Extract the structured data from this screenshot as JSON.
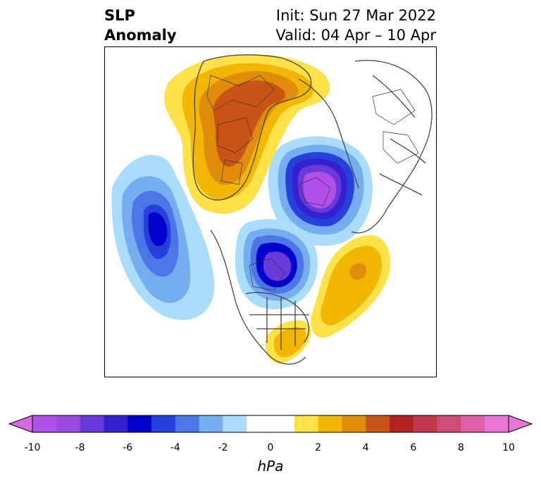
{
  "title": {
    "left_line1": "SLP",
    "left_line2": "Anomaly",
    "right_line1": "Init: Sun 27 Mar 2022",
    "right_line2": "Valid: 04 Apr – 10 Apr"
  },
  "colorbar": {
    "unit": "hPa",
    "ticks": [
      "-10",
      "-8",
      "-6",
      "-4",
      "-2",
      "0",
      "2",
      "4",
      "6",
      "8",
      "10"
    ],
    "bin_colors": [
      "#b050e6",
      "#9a4be0",
      "#6a39d9",
      "#3520d0",
      "#0000cc",
      "#2442db",
      "#4a76e6",
      "#74aef0",
      "#aadcfb",
      "#ffffff",
      "#ffffff",
      "#ffe14a",
      "#f2b705",
      "#e08d0c",
      "#c85515",
      "#b22222",
      "#c23850",
      "#d04c78",
      "#dd60a8",
      "#e876d6"
    ]
  },
  "map": {
    "features": [
      "negative-anomaly-pacific",
      "negative-anomaly-arctic",
      "negative-anomaly-hudson-bay",
      "positive-anomaly-siberia",
      "positive-anomaly-atlantic",
      "positive-anomaly-southeast-us"
    ]
  }
}
